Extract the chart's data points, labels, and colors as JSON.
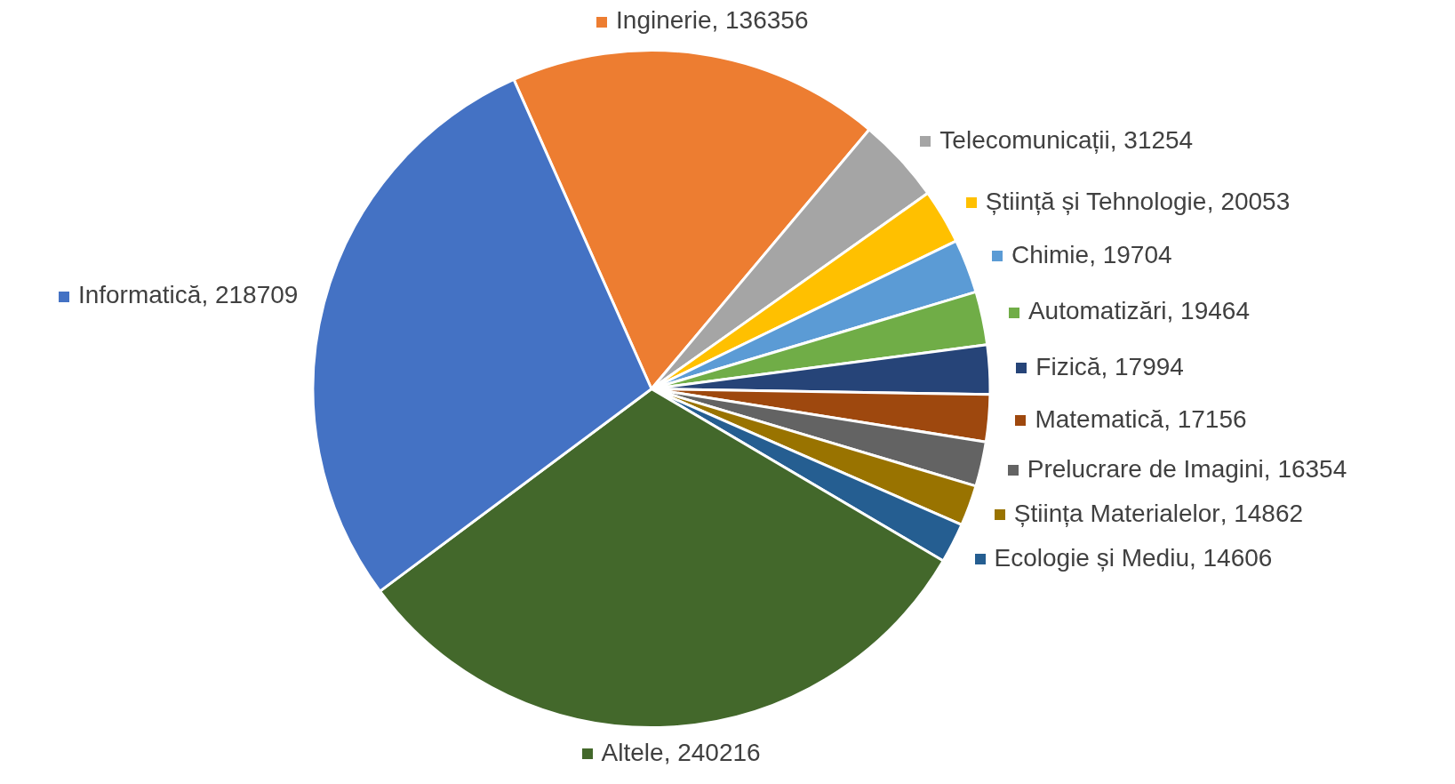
{
  "chart_data": {
    "type": "pie",
    "categories": [
      "Inginerie",
      "Telecomunicații",
      "Știință și Tehnologie",
      "Chimie",
      "Automatizări",
      "Fizică",
      "Matematică",
      "Prelucrare de Imagini",
      "Știința Materialelor",
      "Ecologie și Mediu",
      "Altele",
      "Informatică"
    ],
    "values": [
      136356,
      31254,
      20053,
      19704,
      19464,
      17994,
      17156,
      16354,
      14862,
      14606,
      240216,
      218709
    ],
    "value_labels": [
      ", 136356",
      ", 31254",
      ", 20053",
      ", 19704",
      ", 19464",
      ", 17994",
      ", 17156",
      ", 16354",
      ", 14862",
      ", 14606",
      ", 240216",
      ", 218709"
    ],
    "colors": [
      "#ed7d31",
      "#a5a5a5",
      "#ffc000",
      "#5b9bd5",
      "#70ad47",
      "#264478",
      "#9e480e",
      "#636363",
      "#997300",
      "#255e91",
      "#43682b",
      "#4472c4"
    ],
    "legend": "right"
  }
}
